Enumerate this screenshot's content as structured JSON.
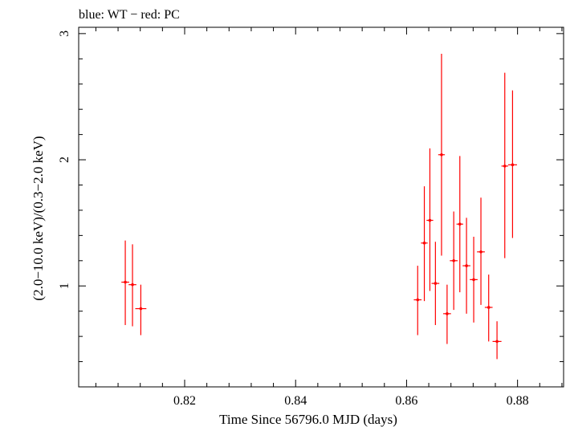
{
  "chart_data": {
    "type": "scatter",
    "title": "blue: WT − red: PC",
    "xlabel": "Time Since 56796.0 MJD (days)",
    "ylabel": "(2.0−10.0 keV)/(0.3−2.0 keV)",
    "xlim": [
      0.8009,
      0.8883
    ],
    "ylim": [
      0.2,
      3.05
    ],
    "xticks": [
      {
        "value": 0.82,
        "label": "0.82"
      },
      {
        "value": 0.84,
        "label": "0.84"
      },
      {
        "value": 0.86,
        "label": "0.86"
      },
      {
        "value": 0.88,
        "label": "0.88"
      }
    ],
    "yticks": [
      {
        "value": 1,
        "label": "1"
      },
      {
        "value": 2,
        "label": "2"
      },
      {
        "value": 3,
        "label": "3"
      }
    ],
    "series": [
      {
        "name": "PC",
        "color": "#ff0000",
        "points": [
          {
            "x": 0.8093,
            "xerr": 0.0007,
            "y": 1.03,
            "ylo": 0.69,
            "yhi": 1.36
          },
          {
            "x": 0.8106,
            "xerr": 0.0007,
            "y": 1.01,
            "ylo": 0.68,
            "yhi": 1.33
          },
          {
            "x": 0.8121,
            "xerr": 0.001,
            "y": 0.82,
            "ylo": 0.61,
            "yhi": 1.01
          },
          {
            "x": 0.862,
            "xerr": 0.0007,
            "y": 0.89,
            "ylo": 0.61,
            "yhi": 1.16
          },
          {
            "x": 0.8632,
            "xerr": 0.0006,
            "y": 1.34,
            "ylo": 0.88,
            "yhi": 1.79
          },
          {
            "x": 0.8642,
            "xerr": 0.0006,
            "y": 1.52,
            "ylo": 0.96,
            "yhi": 2.09
          },
          {
            "x": 0.8652,
            "xerr": 0.0007,
            "y": 1.02,
            "ylo": 0.69,
            "yhi": 1.35
          },
          {
            "x": 0.8663,
            "xerr": 0.0006,
            "y": 2.04,
            "ylo": 1.24,
            "yhi": 2.84
          },
          {
            "x": 0.8673,
            "xerr": 0.0007,
            "y": 0.78,
            "ylo": 0.54,
            "yhi": 1.01
          },
          {
            "x": 0.8685,
            "xerr": 0.0007,
            "y": 1.2,
            "ylo": 0.81,
            "yhi": 1.59
          },
          {
            "x": 0.8696,
            "xerr": 0.0006,
            "y": 1.49,
            "ylo": 0.95,
            "yhi": 2.03
          },
          {
            "x": 0.8708,
            "xerr": 0.0007,
            "y": 1.16,
            "ylo": 0.78,
            "yhi": 1.54
          },
          {
            "x": 0.8721,
            "xerr": 0.0007,
            "y": 1.05,
            "ylo": 0.71,
            "yhi": 1.39
          },
          {
            "x": 0.8734,
            "xerr": 0.0007,
            "y": 1.27,
            "ylo": 0.85,
            "yhi": 1.7
          },
          {
            "x": 0.8748,
            "xerr": 0.0007,
            "y": 0.83,
            "ylo": 0.56,
            "yhi": 1.09
          },
          {
            "x": 0.8763,
            "xerr": 0.0008,
            "y": 0.56,
            "ylo": 0.42,
            "yhi": 0.72
          },
          {
            "x": 0.8777,
            "xerr": 0.0006,
            "y": 1.95,
            "ylo": 1.22,
            "yhi": 2.69
          },
          {
            "x": 0.8791,
            "xerr": 0.0008,
            "y": 1.96,
            "ylo": 1.38,
            "yhi": 2.55
          }
        ]
      }
    ]
  }
}
